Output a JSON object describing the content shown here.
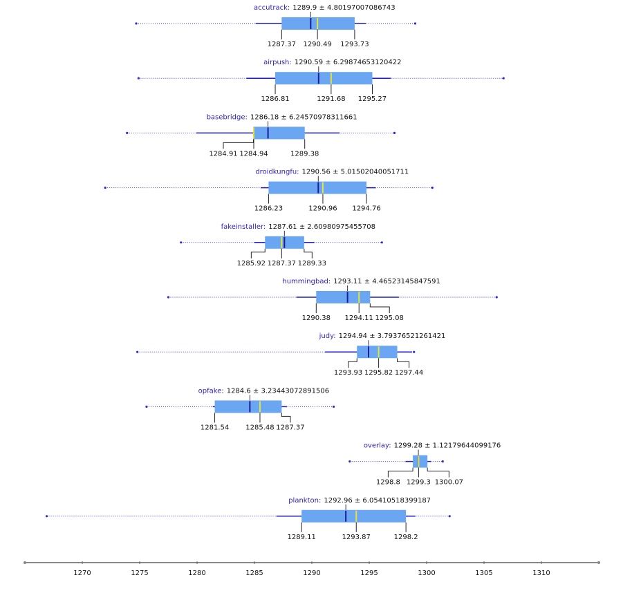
{
  "chart_data": {
    "type": "box",
    "xlim": [
      1265,
      1315
    ],
    "xticks": [
      1270,
      1275,
      1280,
      1285,
      1290,
      1295,
      1300,
      1305,
      1310
    ],
    "box_color": "#6aa6f2",
    "mean_color": "#1c1c9c",
    "median_color": "#e6e23a",
    "whisker_color": "#1a1acc",
    "groups": [
      {
        "name": "accutrack:",
        "label": "1289.9 ± 4.80197007086743",
        "mean": 1289.9,
        "std": 4.80197007086743,
        "q1": 1287.37,
        "median": 1290.49,
        "q3": 1293.73,
        "min": 1274.7,
        "max": 1299.0
      },
      {
        "name": "airpush:",
        "label": "1290.59 ± 6.29874653120422",
        "mean": 1290.59,
        "std": 6.29874653120422,
        "q1": 1286.81,
        "median": 1291.68,
        "q3": 1295.27,
        "min": 1274.9,
        "max": 1306.7
      },
      {
        "name": "basebridge:",
        "label": "1286.18 ± 6.24570978311661",
        "mean": 1286.18,
        "std": 6.24570978311661,
        "q1": 1284.91,
        "median": 1284.94,
        "q3": 1289.38,
        "min": 1273.9,
        "max": 1297.2
      },
      {
        "name": "droidkungfu:",
        "label": "1290.56 ± 5.01502040051711",
        "mean": 1290.56,
        "std": 5.01502040051711,
        "q1": 1286.23,
        "median": 1290.96,
        "q3": 1294.76,
        "min": 1272.0,
        "max": 1300.5
      },
      {
        "name": "fakeinstaller:",
        "label": "1287.61 ± 2.60980975455708",
        "mean": 1287.61,
        "std": 2.60980975455708,
        "q1": 1285.92,
        "median": 1287.37,
        "q3": 1289.33,
        "min": 1278.6,
        "max": 1296.1
      },
      {
        "name": "hummingbad:",
        "label": "1293.11 ± 4.46523145847591",
        "mean": 1293.11,
        "std": 4.46523145847591,
        "q1": 1290.38,
        "median": 1294.11,
        "q3": 1295.08,
        "min": 1277.5,
        "max": 1306.1
      },
      {
        "name": "judy:",
        "label": "1294.94 ± 3.79376521261421",
        "mean": 1294.94,
        "std": 3.79376521261421,
        "q1": 1293.93,
        "median": 1295.82,
        "q3": 1297.44,
        "min": 1274.8,
        "max": 1298.9
      },
      {
        "name": "opfake:",
        "label": "1284.6 ± 3.23443072891506",
        "mean": 1284.6,
        "std": 3.23443072891506,
        "q1": 1281.54,
        "median": 1285.48,
        "q3": 1287.37,
        "min": 1275.6,
        "max": 1291.9
      },
      {
        "name": "overlay:",
        "label": "1299.28 ± 1.12179644099176",
        "mean": 1299.28,
        "std": 1.12179644099176,
        "q1": 1298.8,
        "median": 1299.3,
        "q3": 1300.07,
        "min": 1293.3,
        "max": 1301.4
      },
      {
        "name": "plankton:",
        "label": "1292.96 ± 6.05410518399187",
        "mean": 1292.96,
        "std": 6.05410518399187,
        "q1": 1289.11,
        "median": 1293.87,
        "q3": 1298.2,
        "min": 1266.9,
        "max": 1302.0
      }
    ]
  }
}
